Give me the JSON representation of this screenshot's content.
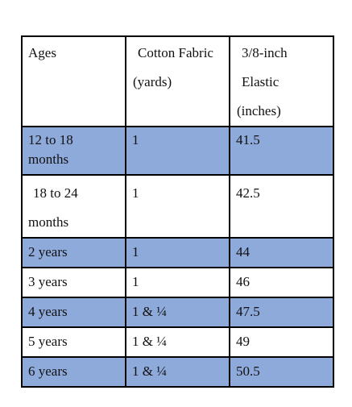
{
  "table": {
    "rows": [
      [
        [
          "Ages"
        ],
        [
          "Cotton Fabric",
          "(yards)"
        ],
        [
          "3/8-inch",
          "Elastic",
          "(inches)"
        ]
      ],
      [
        [
          "12 to 18",
          "months"
        ],
        [
          "1"
        ],
        [
          "41.5"
        ]
      ],
      [
        [
          "18 to 24",
          "months"
        ],
        [
          "1"
        ],
        [
          "42.5"
        ]
      ],
      [
        [
          "2 years"
        ],
        [
          "1"
        ],
        [
          "44"
        ]
      ],
      [
        [
          "3 years"
        ],
        [
          "1"
        ],
        [
          "46"
        ]
      ],
      [
        [
          "4 years"
        ],
        [
          "1 & ¼"
        ],
        [
          "47.5"
        ]
      ],
      [
        [
          "5 years"
        ],
        [
          "1 & ¼"
        ],
        [
          "49"
        ]
      ],
      [
        [
          "6 years"
        ],
        [
          "1 & ¼"
        ],
        [
          "50.5"
        ]
      ]
    ]
  }
}
